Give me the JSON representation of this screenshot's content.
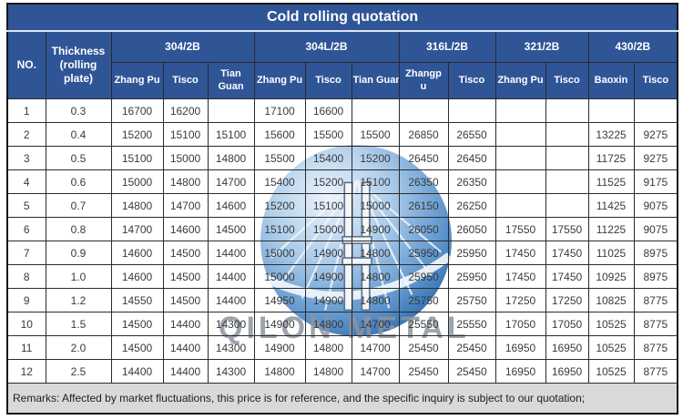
{
  "title": "Cold rolling quotation",
  "columns": {
    "no": "NO.",
    "thickness": "Thickness\n(rolling\nplate)",
    "groups": [
      {
        "label": "304/2B",
        "subs": [
          "Zhang Pu",
          "Tisco",
          "Tian\nGuan"
        ]
      },
      {
        "label": "304L/2B",
        "subs": [
          "Zhang Pu",
          "Tisco",
          "Tian Guan"
        ]
      },
      {
        "label": "316L/2B",
        "subs": [
          "Zhangp\nu",
          "Tisco"
        ]
      },
      {
        "label": "321/2B",
        "subs": [
          "Zhang Pu",
          "Tisco"
        ]
      },
      {
        "label": "430/2B",
        "subs": [
          "Baoxin",
          "Tisco"
        ]
      }
    ]
  },
  "rows": [
    {
      "no": "1",
      "thickness": "0.3",
      "values": [
        "16700",
        "16200",
        "",
        "17100",
        "16600",
        "",
        "",
        "",
        "",
        "",
        "",
        ""
      ]
    },
    {
      "no": "2",
      "thickness": "0.4",
      "values": [
        "15200",
        "15100",
        "15100",
        "15600",
        "15500",
        "15500",
        "26850",
        "26550",
        "",
        "",
        "13225",
        "9275"
      ]
    },
    {
      "no": "3",
      "thickness": "0.5",
      "values": [
        "15100",
        "15000",
        "14800",
        "15500",
        "15400",
        "15200",
        "26450",
        "26450",
        "",
        "",
        "11725",
        "9275"
      ]
    },
    {
      "no": "4",
      "thickness": "0.6",
      "values": [
        "15000",
        "14800",
        "14700",
        "15400",
        "15200",
        "15100",
        "26350",
        "26350",
        "",
        "",
        "11525",
        "9175"
      ]
    },
    {
      "no": "5",
      "thickness": "0.7",
      "values": [
        "14800",
        "14700",
        "14600",
        "15200",
        "15100",
        "15000",
        "26150",
        "26250",
        "",
        "",
        "11425",
        "9075"
      ]
    },
    {
      "no": "6",
      "thickness": "0.8",
      "values": [
        "14700",
        "14600",
        "14500",
        "15100",
        "15000",
        "14900",
        "26050",
        "26050",
        "17550",
        "17550",
        "11225",
        "9075"
      ]
    },
    {
      "no": "7",
      "thickness": "0.9",
      "values": [
        "14600",
        "14500",
        "14400",
        "15000",
        "14900",
        "14800",
        "25950",
        "25950",
        "17450",
        "17450",
        "11025",
        "8975"
      ]
    },
    {
      "no": "8",
      "thickness": "1.0",
      "values": [
        "14600",
        "14500",
        "14400",
        "15000",
        "14900",
        "14800",
        "25950",
        "25950",
        "17450",
        "17450",
        "10925",
        "8975"
      ]
    },
    {
      "no": "9",
      "thickness": "1.2",
      "values": [
        "14550",
        "14500",
        "14400",
        "14950",
        "14900",
        "14800",
        "25750",
        "25750",
        "17250",
        "17250",
        "10825",
        "8775"
      ]
    },
    {
      "no": "10",
      "thickness": "1.5",
      "values": [
        "14500",
        "14400",
        "14300",
        "14900",
        "14800",
        "14700",
        "25550",
        "25550",
        "17050",
        "17050",
        "10525",
        "8775"
      ]
    },
    {
      "no": "11",
      "thickness": "2.0",
      "values": [
        "14500",
        "14400",
        "14300",
        "14900",
        "14800",
        "14700",
        "25450",
        "25450",
        "16950",
        "16950",
        "10525",
        "8775"
      ]
    },
    {
      "no": "12",
      "thickness": "2.5",
      "values": [
        "14400",
        "14400",
        "14300",
        "14800",
        "14800",
        "14700",
        "25450",
        "25450",
        "16950",
        "16950",
        "10525",
        "8775"
      ]
    }
  ],
  "remarks": "Remarks: Affected by market fluctuations, this price is for reference, and the specific inquiry is subject to our quotation;",
  "watermark": {
    "text": "QILON METAL"
  },
  "colors": {
    "header_blue": "#2F5597",
    "remarks_bg": "#D9D9D9",
    "grid_line": "#2B2B2B",
    "watermark_blue": "#4A86C8",
    "watermark_text_gray": "#8C949E"
  }
}
